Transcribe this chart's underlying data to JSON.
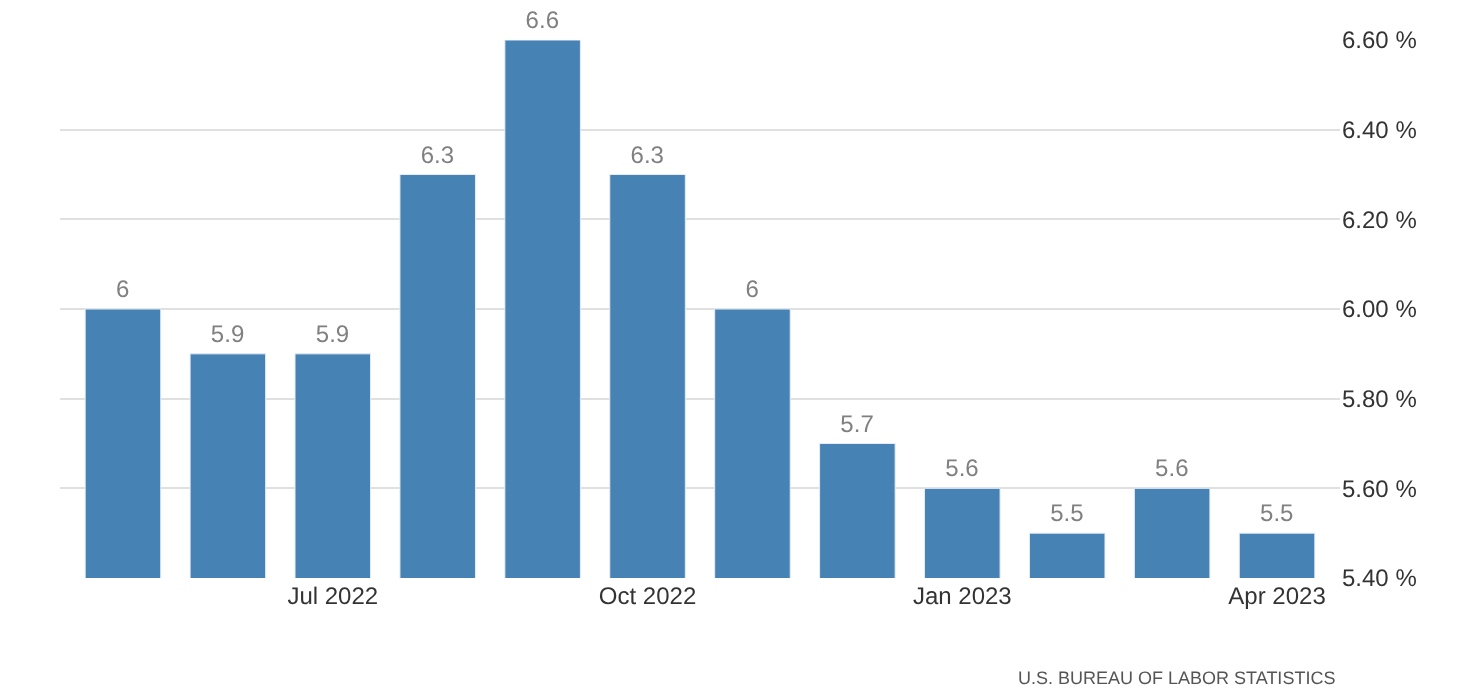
{
  "chart_data": {
    "type": "bar",
    "categories": [
      null,
      null,
      "Jul 2022",
      null,
      null,
      "Oct 2022",
      null,
      null,
      "Jan 2023",
      null,
      null,
      "Apr 2023"
    ],
    "values": [
      6,
      5.9,
      5.9,
      6.3,
      6.6,
      6.3,
      6,
      5.7,
      5.6,
      5.5,
      5.6,
      5.5
    ],
    "color": "#4682b4",
    "ylim": [
      5.4,
      6.6
    ],
    "yticks": [
      {
        "value": 5.4,
        "label": "5.40 %"
      },
      {
        "value": 5.6,
        "label": "5.60 %"
      },
      {
        "value": 5.8,
        "label": "5.80 %"
      },
      {
        "value": 6.0,
        "label": "6.00 %"
      },
      {
        "value": 6.2,
        "label": "6.20 %"
      },
      {
        "value": 6.4,
        "label": "6.40 %"
      },
      {
        "value": 6.6,
        "label": "6.60 %"
      }
    ],
    "grid": "y",
    "data_labels": true,
    "legend": false,
    "annotations": [
      "U.S. BUREAU OF LABOR STATISTICS"
    ]
  }
}
